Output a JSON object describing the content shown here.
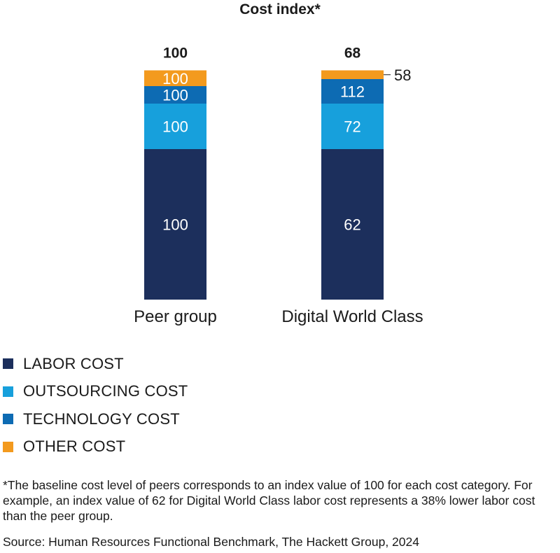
{
  "chart_data": {
    "type": "bar",
    "stacked": true,
    "title": "Cost index*",
    "categories": [
      "Peer group",
      "Digital World Class"
    ],
    "totals": [
      100,
      68
    ],
    "series": [
      {
        "name": "LABOR COST",
        "color": "#1c2f5c",
        "segment_share": [
          43,
          43
        ],
        "labels": [
          "100",
          "62"
        ]
      },
      {
        "name": "OUTSOURCING COST",
        "color": "#17a0dc",
        "segment_share": [
          13,
          13
        ],
        "labels": [
          "100",
          "72"
        ]
      },
      {
        "name": "TECHNOLOGY COST",
        "color": "#0d6bb3",
        "segment_share": [
          5,
          7
        ],
        "labels": [
          "100",
          "112"
        ]
      },
      {
        "name": "OTHER COST",
        "color": "#f39a1e",
        "segment_share": [
          4.5,
          2.5
        ],
        "labels": [
          "100",
          "58"
        ]
      }
    ],
    "xlabel": "",
    "ylabel": "",
    "ylim": [
      0,
      100
    ],
    "grid": false,
    "legend": "bottom-left"
  },
  "legend": {
    "items": [
      {
        "label": "LABOR COST",
        "color": "#1c2f5c"
      },
      {
        "label": "OUTSOURCING COST",
        "color": "#17a0dc"
      },
      {
        "label": "TECHNOLOGY COST",
        "color": "#0d6bb3"
      },
      {
        "label": "OTHER COST",
        "color": "#f39a1e"
      }
    ]
  },
  "notes": {
    "footnote": "*The baseline cost level of peers corresponds to an index value of 100 for each cost category. For example, an index value of 62 for Digital World Class labor cost represents a 38% lower labor cost than the peer group.",
    "source": "Source: Human Resources Functional Benchmark, The Hackett Group, 2024"
  }
}
